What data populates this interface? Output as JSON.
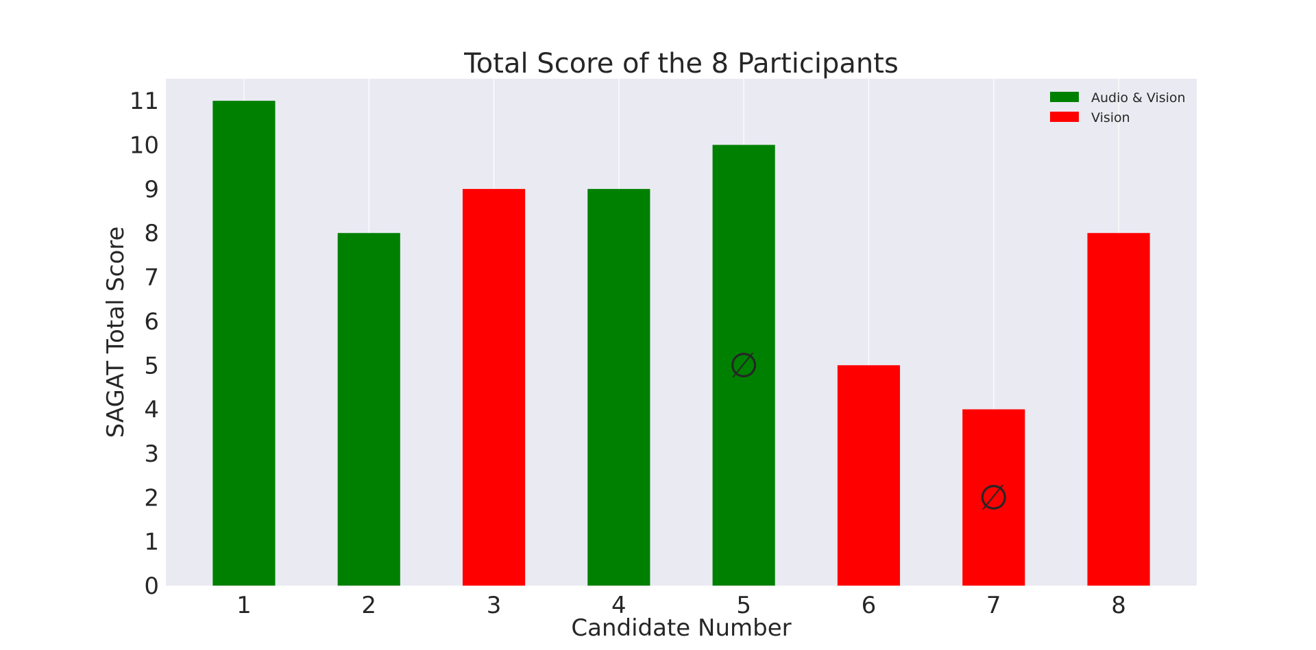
{
  "chart_data": {
    "type": "bar",
    "title": "Total Score of the 8 Participants",
    "xlabel": "Candidate Number",
    "ylabel": "SAGAT Total Score",
    "categories": [
      "1",
      "2",
      "3",
      "4",
      "5",
      "6",
      "7",
      "8"
    ],
    "values": [
      11,
      8,
      9,
      9,
      10,
      5,
      4,
      8
    ],
    "bar_groups": [
      "Audio & Vision",
      "Audio & Vision",
      "Vision",
      "Audio & Vision",
      "Audio & Vision",
      "Vision",
      "Vision",
      "Vision"
    ],
    "ylim": [
      0,
      11.5
    ],
    "yticks": [
      0,
      1,
      2,
      3,
      4,
      5,
      6,
      7,
      8,
      9,
      10,
      11
    ],
    "grid": true,
    "legend": {
      "placement": "top-right",
      "entries": [
        {
          "label": "Audio & Vision",
          "color": "#008000"
        },
        {
          "label": "Vision",
          "color": "#ff0000"
        }
      ]
    },
    "annotations": [
      {
        "x": "5",
        "y": 5,
        "text": "∅"
      },
      {
        "x": "7",
        "y": 2,
        "text": "∅"
      }
    ],
    "colors": {
      "Audio & Vision": "#008000",
      "Vision": "#ff0000",
      "plot_background": "#eaeaf2",
      "grid": "#ffffff"
    }
  }
}
